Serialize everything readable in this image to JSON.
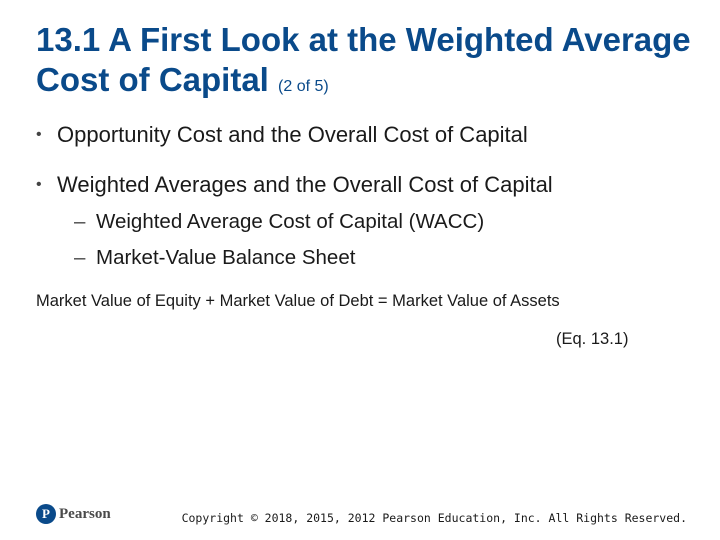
{
  "slide": {
    "title_main": "13.1 A First Look at the Weighted Average Cost of Capital",
    "title_sub": "(2 of 5)",
    "bullets": [
      {
        "text": "Opportunity Cost and the Overall Cost of Capital"
      },
      {
        "text": "Weighted Averages and the Overall Cost of Capital"
      }
    ],
    "subbullets": [
      {
        "text": "Weighted Average Cost of Capital (WACC)"
      },
      {
        "text": "Market-Value Balance Sheet"
      }
    ],
    "equation": "Market Value of Equity + Market Value of Debt = Market Value of Assets",
    "equation_ref": "(Eq. 13.1)"
  },
  "footer": {
    "logo_letter": "P",
    "logo_text": "Pearson",
    "copyright": "Copyright © 2018, 2015, 2012 Pearson Education, Inc. All Rights Reserved."
  },
  "colors": {
    "title": "#0a4a8a",
    "text": "#1a1a1a",
    "logo": "#0a4a8a"
  }
}
